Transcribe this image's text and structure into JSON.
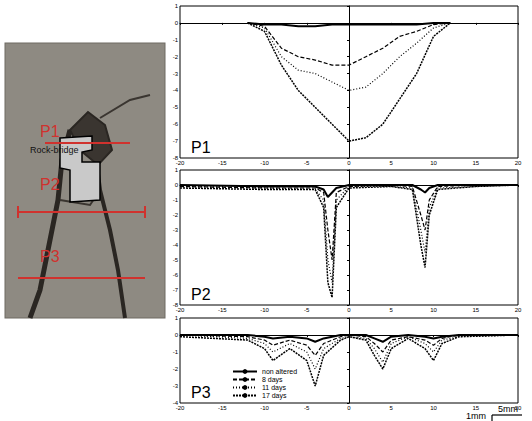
{
  "chart_data": [
    {
      "type": "line",
      "title": "P1",
      "x": [
        -12,
        -10,
        -8,
        -6,
        -4,
        -2,
        0,
        2,
        4,
        6,
        8,
        10,
        12
      ],
      "series": [
        {
          "name": "non altered",
          "color": "#000000",
          "line_style": "solid",
          "values": [
            0,
            -0.1,
            -0.1,
            -0.2,
            -0.2,
            -0.1,
            -0.1,
            -0.1,
            -0.1,
            -0.1,
            -0.1,
            0,
            0
          ]
        },
        {
          "name": "8 days",
          "color": "#000000",
          "line_style": "dashed",
          "values": [
            0,
            -0.2,
            -1.5,
            -2.0,
            -2.2,
            -2.5,
            -2.5,
            -2.0,
            -1.5,
            -0.8,
            -0.5,
            -0.1,
            0
          ]
        },
        {
          "name": "11 days",
          "color": "#000000",
          "line_style": "dotted",
          "values": [
            0,
            -0.3,
            -2.0,
            -2.8,
            -3.0,
            -3.5,
            -4.0,
            -3.8,
            -3.0,
            -2.0,
            -1.2,
            -0.3,
            0
          ]
        },
        {
          "name": "17 days",
          "color": "#000000",
          "line_style": "densely dotted",
          "values": [
            0,
            -0.5,
            -2.5,
            -4.0,
            -5.0,
            -6.0,
            -7.0,
            -6.8,
            -6.0,
            -4.5,
            -3.0,
            -0.8,
            0
          ]
        }
      ],
      "xlim": [
        -20,
        20
      ],
      "xticks": [
        -20,
        -15,
        -10,
        -5,
        0,
        5,
        10,
        15,
        20
      ],
      "ylim": [
        -8,
        1
      ],
      "yticks": [
        -8,
        -7,
        -6,
        -5,
        -4,
        -3,
        -2,
        -1,
        0,
        1
      ],
      "grid": false
    },
    {
      "type": "line",
      "title": "P2",
      "x": [
        -20,
        -10,
        -4,
        -3,
        -2.5,
        -2,
        -1.5,
        0,
        5,
        7.5,
        8.5,
        9,
        9.5,
        10.5,
        15,
        20
      ],
      "series": [
        {
          "name": "non altered",
          "color": "#000000",
          "line_style": "solid",
          "values": [
            0,
            -0.1,
            -0.1,
            -0.3,
            -0.8,
            -0.5,
            -0.2,
            0,
            0,
            0,
            -0.3,
            -0.5,
            -0.2,
            0,
            0,
            0
          ]
        },
        {
          "name": "8 days",
          "color": "#000000",
          "line_style": "dashed",
          "values": [
            -0.1,
            -0.2,
            -0.2,
            -0.5,
            -3,
            -5,
            -0.5,
            -0.1,
            0,
            -0.1,
            -2,
            -3,
            -1,
            -0.1,
            0,
            0
          ]
        },
        {
          "name": "11 days",
          "color": "#000000",
          "line_style": "dotted",
          "values": [
            -0.1,
            -0.2,
            -0.3,
            -1,
            -5,
            -6.5,
            -1,
            -0.1,
            -0.1,
            -0.2,
            -3,
            -4.5,
            -1.5,
            -0.2,
            -0.1,
            0
          ]
        },
        {
          "name": "17 days",
          "color": "#000000",
          "line_style": "densely dotted",
          "values": [
            -0.2,
            -0.3,
            -0.3,
            -1.5,
            -6.5,
            -7.5,
            -1.5,
            -0.2,
            -0.1,
            -0.3,
            -4,
            -5.5,
            -2,
            -0.3,
            -0.1,
            0
          ]
        }
      ],
      "xlim": [
        -20,
        20
      ],
      "xticks": [
        -20,
        -15,
        -10,
        -5,
        0,
        5,
        10,
        15,
        20
      ],
      "ylim": [
        -8,
        1
      ],
      "yticks": [
        -8,
        -7,
        -6,
        -5,
        -4,
        -3,
        -2,
        -1,
        0,
        1
      ],
      "grid": false
    },
    {
      "type": "line",
      "title": "P3",
      "x": [
        -20,
        -12,
        -10,
        -9,
        -7,
        -5,
        -4,
        -3,
        -1,
        0,
        2,
        3,
        4,
        5,
        7,
        9,
        10,
        11,
        13,
        20
      ],
      "series": [
        {
          "name": "non altered",
          "color": "#000000",
          "line_style": "solid",
          "values": [
            0,
            0,
            -0.1,
            -0.2,
            -0.1,
            -0.2,
            -0.4,
            -0.2,
            0,
            0,
            0,
            -0.2,
            -0.4,
            -0.1,
            0,
            -0.1,
            -0.2,
            -0.1,
            0,
            0
          ]
        },
        {
          "name": "8 days",
          "color": "#000000",
          "line_style": "dashed",
          "values": [
            0,
            -0.1,
            -0.3,
            -0.6,
            -0.3,
            -0.6,
            -1.2,
            -0.5,
            -0.1,
            0,
            -0.1,
            -0.5,
            -1.0,
            -0.3,
            -0.1,
            -0.3,
            -0.6,
            -0.2,
            0,
            0
          ]
        },
        {
          "name": "11 days",
          "color": "#000000",
          "line_style": "dotted",
          "values": [
            0,
            -0.2,
            -0.5,
            -1.0,
            -0.5,
            -1.0,
            -2.0,
            -0.8,
            -0.2,
            -0.1,
            -0.2,
            -0.8,
            -1.6,
            -0.5,
            -0.1,
            -0.5,
            -1.0,
            -0.3,
            -0.1,
            0
          ]
        },
        {
          "name": "17 days",
          "color": "#000000",
          "line_style": "densely dotted",
          "values": [
            -0.1,
            -0.3,
            -0.8,
            -1.5,
            -0.8,
            -1.5,
            -3.0,
            -1.2,
            -0.3,
            -0.1,
            -0.3,
            -1.2,
            -2.0,
            -0.8,
            -0.2,
            -0.8,
            -1.5,
            -0.5,
            -0.1,
            0
          ]
        }
      ],
      "xlim": [
        -20,
        20
      ],
      "xticks": [
        -20,
        -15,
        -10,
        -5,
        0,
        5,
        10,
        15,
        20
      ],
      "ylim": [
        -4,
        1
      ],
      "yticks": [
        -4,
        -3,
        -2,
        -1,
        0,
        1
      ],
      "grid": false,
      "legend": "lower left"
    }
  ],
  "photo_labels": {
    "profiles": [
      "P1",
      "P2",
      "P3"
    ],
    "feature": "Rock-bridge"
  },
  "scale_bar": {
    "horizontal": "5mm",
    "vertical": "1mm"
  }
}
